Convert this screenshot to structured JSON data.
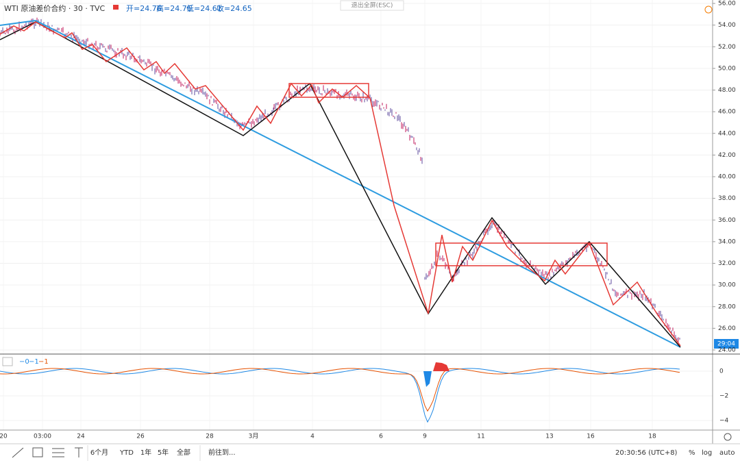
{
  "header": {
    "symbol": "WTI 原油差价合约 · 30 · TVC",
    "open": "开=24.76",
    "high": "高=24.76",
    "low": "低=24.61",
    "close": "收=24.65",
    "exit_fullscreen": "退出全屏(ESC)"
  },
  "price_axis": [
    "56.00",
    "54.00",
    "52.00",
    "50.00",
    "48.00",
    "46.00",
    "44.00",
    "42.00",
    "40.00",
    "38.00",
    "36.00",
    "34.00",
    "32.00",
    "30.00",
    "28.00",
    "26.00",
    "24.00"
  ],
  "price_tag": "29:04",
  "indicator_legend": [
    "−0",
    "−1",
    "−1"
  ],
  "indicator_axis": [
    "0",
    "−2",
    "−4"
  ],
  "time_axis": [
    "20",
    "03:00",
    "24",
    "26",
    "28",
    "3月",
    "4",
    "6",
    "9",
    "11",
    "13",
    "16",
    "18"
  ],
  "toolbar": {
    "ranges": [
      "6个月",
      "YTD",
      "1年",
      "5年",
      "全部"
    ],
    "goto": "前往到...",
    "clock": "20:30:56 (UTC+8)",
    "percent": "%",
    "log": "log",
    "auto": "auto"
  }
}
